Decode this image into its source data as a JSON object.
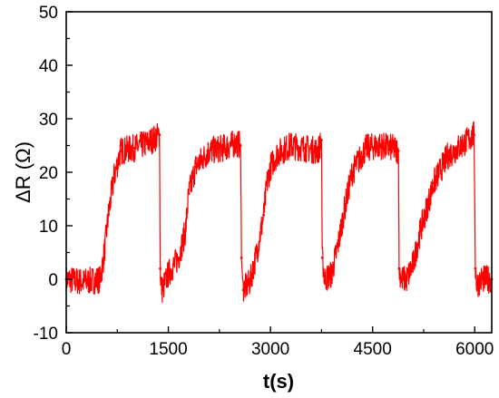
{
  "chart_data": {
    "type": "line",
    "title": "",
    "xlabel": "t(s)",
    "ylabel": "ΔR (Ω)",
    "xlim": [
      0,
      6250
    ],
    "ylim": [
      -10,
      50
    ],
    "x_ticks": [
      0,
      1500,
      3000,
      4500,
      6000
    ],
    "y_ticks": [
      -10,
      0,
      10,
      20,
      30,
      40,
      50
    ],
    "x_tick_labels": [
      "0",
      "1500",
      "3000",
      "4500",
      "6000"
    ],
    "y_tick_labels": [
      "-10",
      "0",
      "10",
      "20",
      "30",
      "40",
      "50"
    ],
    "grid": false,
    "legend": "none",
    "line_color": "#ff0000",
    "series": [
      {
        "x": [
          0,
          250,
          500,
          560,
          620,
          700,
          800,
          1000,
          1200,
          1370,
          1380,
          1395,
          1410,
          1500,
          1650,
          1750,
          1800,
          1900,
          2100,
          2300,
          2500,
          2560,
          2575,
          2600,
          2700,
          2800,
          2900,
          2950,
          3000,
          3100,
          3300,
          3500,
          3700,
          3750,
          3760,
          3800,
          3900,
          4000,
          4100,
          4200,
          4400,
          4600,
          4800,
          4880,
          4890,
          4920,
          5000,
          5100,
          5200,
          5400,
          5600,
          5800,
          5990,
          6010,
          6030,
          6100,
          6250
        ],
        "y": [
          0,
          -0.5,
          0,
          5,
          12,
          19,
          24,
          24.5,
          25.5,
          27,
          2,
          -1,
          -2,
          1,
          4,
          9,
          16,
          21,
          24,
          24.5,
          25.5,
          25,
          4,
          -2,
          -0.5,
          5,
          12,
          18,
          21,
          23.5,
          25,
          24.5,
          24,
          26,
          4,
          0,
          1,
          7,
          14,
          20,
          24.5,
          25,
          24.5,
          24,
          2,
          0,
          0,
          3,
          9,
          18,
          23,
          25,
          27,
          2,
          -1,
          0,
          0
        ]
      }
    ]
  }
}
